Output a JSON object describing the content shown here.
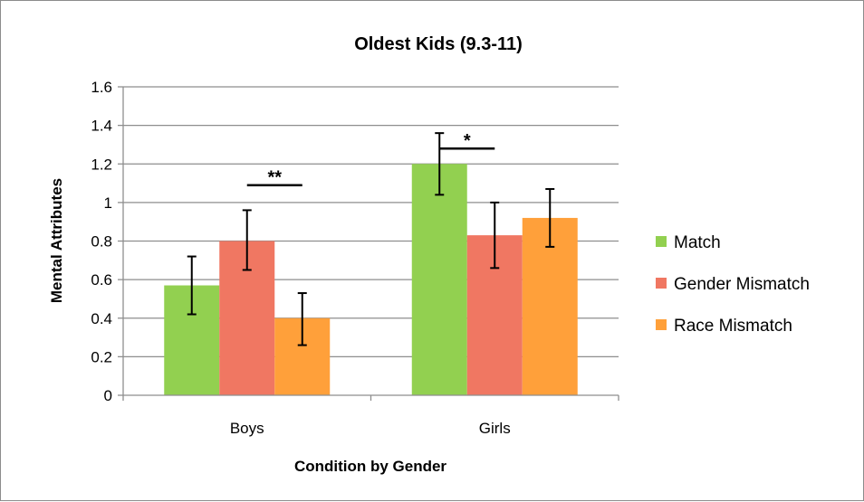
{
  "chart_data": {
    "type": "bar",
    "title": "Oldest Kids (9.3-11)",
    "xlabel": "Condition by Gender",
    "ylabel": "Mental Attributes",
    "categories": [
      "Boys",
      "Girls"
    ],
    "ylim": [
      0,
      1.6
    ],
    "yticks": [
      0,
      0.2,
      0.4,
      0.6,
      0.8,
      1,
      1.2,
      1.4,
      1.6
    ],
    "ytick_labels": [
      "0",
      "0.2",
      "0.4",
      "0.6",
      "0.8",
      "1",
      "1.2",
      "1.4",
      "1.6"
    ],
    "grid": true,
    "legend_position": "right",
    "series": [
      {
        "name": "Match",
        "color": "#92d050",
        "values": [
          0.57,
          1.2
        ],
        "error_low": [
          0.42,
          1.04
        ],
        "error_high": [
          0.72,
          1.36
        ]
      },
      {
        "name": "Gender Mismatch",
        "color": "#f07762",
        "values": [
          0.8,
          0.83
        ],
        "error_low": [
          0.65,
          0.66
        ],
        "error_high": [
          0.96,
          1.0
        ]
      },
      {
        "name": "Race Mismatch",
        "color": "#ffa03a",
        "values": [
          0.4,
          0.92
        ],
        "error_low": [
          0.26,
          0.77
        ],
        "error_high": [
          0.53,
          1.07
        ]
      }
    ],
    "annotations": [
      {
        "text": "**",
        "category": 0,
        "from_series": 1,
        "to_series": 2,
        "y": 1.09
      },
      {
        "text": "*",
        "category": 1,
        "from_series": 0,
        "to_series": 1,
        "y": 1.28
      }
    ]
  }
}
